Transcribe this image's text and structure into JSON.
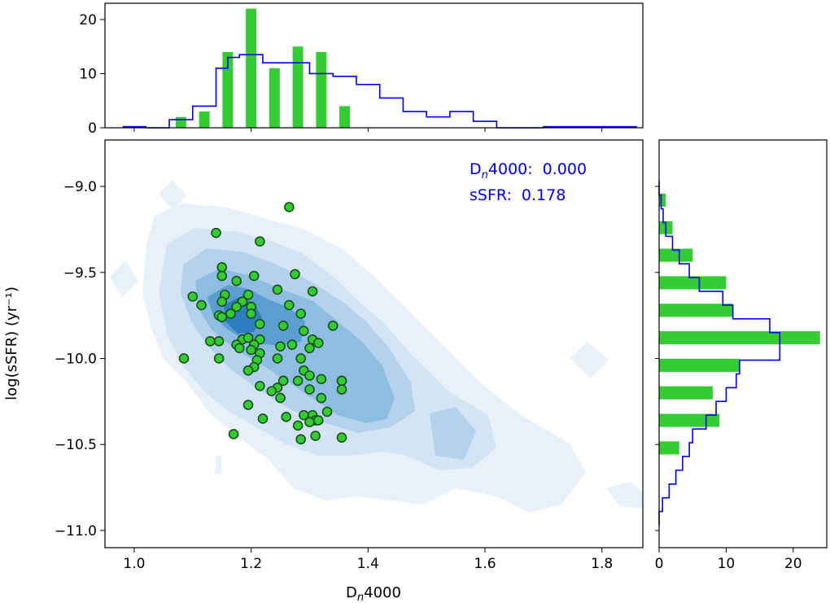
{
  "chart_data": {
    "type": "scatter",
    "description_series": "Green points: sample galaxies; blue filled contours: comparison population density; marginal histograms on top (D_n4000) and right (log sSFR)",
    "xlabel": "Dₙ 4000",
    "xlabel_prefix": "D",
    "xlabel_sub": "n",
    "xlabel_suffix": "4000",
    "ylabel": "log(sSFR) (yr⁻¹)",
    "xlim": [
      0.95,
      1.87
    ],
    "ylim": [
      -11.1,
      -8.73
    ],
    "x_ticks": [
      1.0,
      1.2,
      1.4,
      1.6,
      1.8
    ],
    "x_tick_labels": [
      "1.0",
      "1.2",
      "1.4",
      "1.6",
      "1.8"
    ],
    "y_ticks": [
      -9.0,
      -9.5,
      -10.0,
      -10.5,
      -11.0
    ],
    "y_tick_labels": [
      "−9.0",
      "−9.5",
      "−10.0",
      "−10.5",
      "−11.0"
    ],
    "stats": [
      {
        "label_prefix": "D",
        "label_sub": "n",
        "label_suffix": "4000:",
        "value": "0.000"
      },
      {
        "label_prefix": "sSFR:",
        "label_sub": "",
        "label_suffix": "",
        "value": "0.178"
      }
    ],
    "points": [
      [
        1.265,
        -9.12
      ],
      [
        1.14,
        -9.27
      ],
      [
        1.215,
        -9.32
      ],
      [
        1.15,
        -9.47
      ],
      [
        1.275,
        -9.51
      ],
      [
        1.15,
        -9.52
      ],
      [
        1.205,
        -9.52
      ],
      [
        1.175,
        -9.55
      ],
      [
        1.245,
        -9.6
      ],
      [
        1.305,
        -9.61
      ],
      [
        1.1,
        -9.64
      ],
      [
        1.155,
        -9.63
      ],
      [
        1.195,
        -9.63
      ],
      [
        1.15,
        -9.67
      ],
      [
        1.185,
        -9.67
      ],
      [
        1.175,
        -9.7
      ],
      [
        1.265,
        -9.69
      ],
      [
        1.115,
        -9.69
      ],
      [
        1.2,
        -9.7
      ],
      [
        1.145,
        -9.75
      ],
      [
        1.165,
        -9.74
      ],
      [
        1.2,
        -9.74
      ],
      [
        1.285,
        -9.74
      ],
      [
        1.15,
        -9.76
      ],
      [
        1.215,
        -9.8
      ],
      [
        1.34,
        -9.81
      ],
      [
        1.255,
        -9.81
      ],
      [
        1.29,
        -9.84
      ],
      [
        1.145,
        -9.9
      ],
      [
        1.13,
        -9.9
      ],
      [
        1.185,
        -9.89
      ],
      [
        1.195,
        -9.88
      ],
      [
        1.215,
        -9.89
      ],
      [
        1.305,
        -9.89
      ],
      [
        1.315,
        -9.91
      ],
      [
        1.175,
        -9.92
      ],
      [
        1.205,
        -9.92
      ],
      [
        1.18,
        -9.94
      ],
      [
        1.25,
        -9.93
      ],
      [
        1.27,
        -9.92
      ],
      [
        1.3,
        -9.94
      ],
      [
        1.2,
        -9.95
      ],
      [
        1.215,
        -9.97
      ],
      [
        1.085,
        -10.0
      ],
      [
        1.145,
        -10.0
      ],
      [
        1.21,
        -10.01
      ],
      [
        1.245,
        -10.0
      ],
      [
        1.285,
        -10.0
      ],
      [
        1.205,
        -10.05
      ],
      [
        1.195,
        -10.07
      ],
      [
        1.29,
        -10.07
      ],
      [
        1.3,
        -10.1
      ],
      [
        1.215,
        -10.16
      ],
      [
        1.255,
        -10.13
      ],
      [
        1.28,
        -10.13
      ],
      [
        1.32,
        -10.12
      ],
      [
        1.355,
        -10.13
      ],
      [
        1.245,
        -10.17
      ],
      [
        1.235,
        -10.19
      ],
      [
        1.3,
        -10.18
      ],
      [
        1.355,
        -10.18
      ],
      [
        1.25,
        -10.23
      ],
      [
        1.32,
        -10.23
      ],
      [
        1.195,
        -10.27
      ],
      [
        1.33,
        -10.31
      ],
      [
        1.305,
        -10.33
      ],
      [
        1.26,
        -10.34
      ],
      [
        1.29,
        -10.33
      ],
      [
        1.31,
        -10.36
      ],
      [
        1.22,
        -10.35
      ],
      [
        1.3,
        -10.37
      ],
      [
        1.28,
        -10.39
      ],
      [
        1.315,
        -10.36
      ],
      [
        1.17,
        -10.44
      ],
      [
        1.31,
        -10.45
      ],
      [
        1.285,
        -10.47
      ],
      [
        1.355,
        -10.46
      ]
    ],
    "top_hist_green": {
      "bin_centers": [
        1.08,
        1.12,
        1.16,
        1.2,
        1.24,
        1.28,
        1.32,
        1.36
      ],
      "counts": [
        2,
        3,
        14,
        22,
        11,
        15,
        14,
        4
      ]
    },
    "top_hist_blue": {
      "edges": [
        0.98,
        1.02,
        1.06,
        1.1,
        1.14,
        1.16,
        1.18,
        1.2,
        1.22,
        1.26,
        1.3,
        1.34,
        1.38,
        1.42,
        1.46,
        1.5,
        1.54,
        1.58,
        1.62,
        1.66,
        1.7,
        1.74,
        1.78,
        1.82,
        1.86
      ],
      "values": [
        0.2,
        0,
        1.5,
        4,
        11,
        13,
        13.5,
        13.5,
        12,
        12,
        10,
        9.5,
        8,
        5.5,
        3,
        2,
        3,
        1.2,
        0,
        0,
        0.2,
        0.2,
        0.2,
        0.2
      ]
    },
    "top_ylim": [
      0,
      23
    ],
    "top_y_ticks": [
      0,
      10,
      20
    ],
    "top_y_tick_labels": [
      "0",
      "10",
      "20"
    ],
    "right_hist_green": {
      "bin_centers": [
        -9.08,
        -9.24,
        -9.4,
        -9.56,
        -9.72,
        -9.88,
        -10.04,
        -10.2,
        -10.36,
        -10.52
      ],
      "counts": [
        1,
        2,
        5,
        10,
        11,
        24,
        12,
        8,
        9,
        3
      ]
    },
    "right_hist_blue": {
      "edges": [
        -8.97,
        -9.05,
        -9.13,
        -9.21,
        -9.29,
        -9.37,
        -9.45,
        -9.53,
        -9.61,
        -9.69,
        -9.77,
        -9.85,
        -9.93,
        -10.01,
        -10.09,
        -10.17,
        -10.25,
        -10.33,
        -10.41,
        -10.49,
        -10.57,
        -10.65,
        -10.73,
        -10.81,
        -10.89,
        -10.97
      ],
      "values": [
        0,
        0.3,
        0.6,
        1,
        2,
        3,
        4.5,
        6,
        9.5,
        11,
        16.5,
        18,
        18,
        12,
        11.5,
        10,
        8.5,
        7,
        5,
        4.5,
        3.5,
        2.5,
        1.5,
        0.5,
        0
      ]
    },
    "right_xlim": [
      0,
      25
    ],
    "right_x_ticks": [
      0,
      10,
      20
    ],
    "right_x_tick_labels": [
      "0",
      "10",
      "20"
    ],
    "colors": {
      "green": "#33cc33",
      "green_edge": "#1a4d1a",
      "blue_line": "#0000ee",
      "contour_levels": [
        "#e8f1fa",
        "#d3e4f4",
        "#b4d2ec",
        "#8dbde0",
        "#5a9fd0",
        "#2f7ec1"
      ]
    }
  }
}
